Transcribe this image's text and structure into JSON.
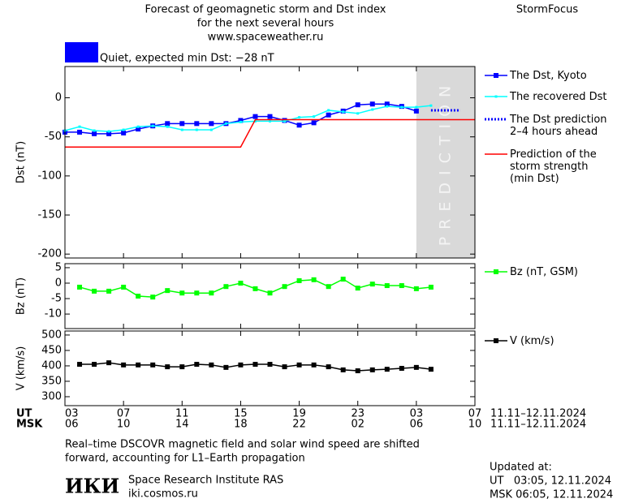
{
  "header": {
    "title_lines": [
      "Forecast of geomagnetic storm and Dst index",
      "for the next several hours",
      "www.spaceweather.ru"
    ],
    "brand": "StormFocus",
    "status": {
      "color": "#0000ff",
      "text": "Quiet, expected min Dst: −28 nT"
    }
  },
  "x_axis": {
    "xlim": [
      3,
      31
    ],
    "ticks_ut": [
      {
        "value": 3,
        "label": "03"
      },
      {
        "value": 7,
        "label": "07"
      },
      {
        "value": 11,
        "label": "11"
      },
      {
        "value": 15,
        "label": "15"
      },
      {
        "value": 19,
        "label": "19"
      },
      {
        "value": 23,
        "label": "23"
      },
      {
        "value": 27,
        "label": "03"
      },
      {
        "value": 31,
        "label": "07"
      }
    ],
    "ticks_msk": [
      {
        "value": 3,
        "label": "06"
      },
      {
        "value": 7,
        "label": "10"
      },
      {
        "value": 11,
        "label": "14"
      },
      {
        "value": 15,
        "label": "18"
      },
      {
        "value": 19,
        "label": "22"
      },
      {
        "value": 23,
        "label": "02"
      },
      {
        "value": 27,
        "label": "06"
      },
      {
        "value": 31,
        "label": "10"
      }
    ],
    "ut_label": "UT",
    "msk_label": "MSK",
    "date_labels": [
      "11.11–12.11.2024",
      "11.11–12.11.2024"
    ]
  },
  "chart_data": [
    {
      "type": "line",
      "ylabel": "Dst (nT)",
      "ylim": [
        -205,
        40
      ],
      "yticks": [
        0,
        -50,
        -100,
        -150,
        -200
      ],
      "shaded_region": {
        "xlim": [
          27,
          31
        ],
        "label": "PREDICTION",
        "color": "#d9d9d9"
      },
      "series": [
        {
          "name": "The Dst, Kyoto",
          "color": "#0000ff",
          "marker": "square",
          "x": [
            3,
            4,
            5,
            6,
            7,
            8,
            9,
            10,
            11,
            12,
            13,
            14,
            15,
            16,
            17,
            18,
            19,
            20,
            21,
            22,
            23,
            24,
            25,
            26,
            27
          ],
          "values": [
            -44,
            -44,
            -46,
            -46,
            -45,
            -40,
            -36,
            -33,
            -33,
            -33,
            -33,
            -33,
            -29,
            -24,
            -24,
            -29,
            -35,
            -32,
            -22,
            -17,
            -9,
            -8,
            -8,
            -11,
            -17
          ]
        },
        {
          "name": "The recovered Dst",
          "color": "#00ffff",
          "marker": "small",
          "x": [
            3,
            4,
            5,
            6,
            7,
            8,
            9,
            10,
            11,
            12,
            13,
            14,
            15,
            16,
            17,
            18,
            19,
            20,
            21,
            22,
            23,
            24,
            25,
            26,
            27,
            28
          ],
          "values": [
            -42,
            -37,
            -42,
            -43,
            -41,
            -37,
            -36,
            -37,
            -41,
            -41,
            -41,
            -33,
            -31,
            -30,
            -30,
            -30,
            -25,
            -24,
            -16,
            -18,
            -20,
            -15,
            -11,
            -12,
            -12,
            -10
          ]
        },
        {
          "name": "The Dst prediction\n2–4 hours ahead",
          "color": "#0000ff",
          "marker": "none",
          "dash": true,
          "x": [
            28,
            30
          ],
          "values": [
            -16,
            -16
          ]
        },
        {
          "name": "Prediction of the\nstorm strength\n(min Dst)",
          "color": "#ff0000",
          "marker": "none",
          "x": [
            3,
            15,
            16,
            31
          ],
          "values": [
            -63,
            -63,
            -28,
            -28
          ]
        }
      ]
    },
    {
      "type": "line",
      "ylabel": "Bz (nT)",
      "ylim": [
        -14.7,
        6.3
      ],
      "yticks": [
        5,
        0,
        -5,
        -10
      ],
      "series": [
        {
          "name": "Bz (nT, GSM)",
          "color": "#00ff00",
          "marker": "square",
          "x": [
            4,
            5,
            6,
            7,
            8,
            9,
            10,
            11,
            12,
            13,
            14,
            15,
            16,
            17,
            18,
            19,
            20,
            21,
            22,
            23,
            24,
            25,
            26,
            27,
            28
          ],
          "values": [
            -1.3,
            -2.6,
            -2.6,
            -1.3,
            -4.2,
            -4.5,
            -2.4,
            -3.2,
            -3.2,
            -3.2,
            -1.1,
            0,
            -1.8,
            -3.2,
            -1.1,
            0.8,
            1.1,
            -1.1,
            1.3,
            -1.6,
            -0.3,
            -0.8,
            -0.8,
            -1.8,
            -1.3
          ]
        }
      ]
    },
    {
      "type": "line",
      "ylabel": "V (km/s)",
      "ylim": [
        271,
        513
      ],
      "yticks": [
        500,
        450,
        400,
        350,
        300
      ],
      "series": [
        {
          "name": "V (km/s)",
          "color": "#000000",
          "marker": "square",
          "x": [
            4,
            5,
            6,
            7,
            8,
            9,
            10,
            11,
            12,
            13,
            14,
            15,
            16,
            17,
            18,
            19,
            20,
            21,
            22,
            23,
            24,
            25,
            26,
            27,
            28
          ],
          "values": [
            405,
            405,
            410,
            403,
            403,
            403,
            397,
            397,
            405,
            403,
            395,
            403,
            405,
            405,
            397,
            403,
            403,
            397,
            387,
            384,
            387,
            389,
            392,
            395,
            389
          ]
        }
      ]
    }
  ],
  "footer": {
    "note_lines": [
      "Real–time DSCOVR magnetic field and solar wind speed are shifted",
      "forward, accounting for L1–Earth propagation"
    ],
    "logo": "ИКИ",
    "institute": "Space Research Institute RAS",
    "site": "iki.cosmos.ru",
    "updated_lines": [
      "Updated at:",
      "UT   03:05, 12.11.2024",
      "MSK 06:05, 12.11.2024"
    ]
  }
}
